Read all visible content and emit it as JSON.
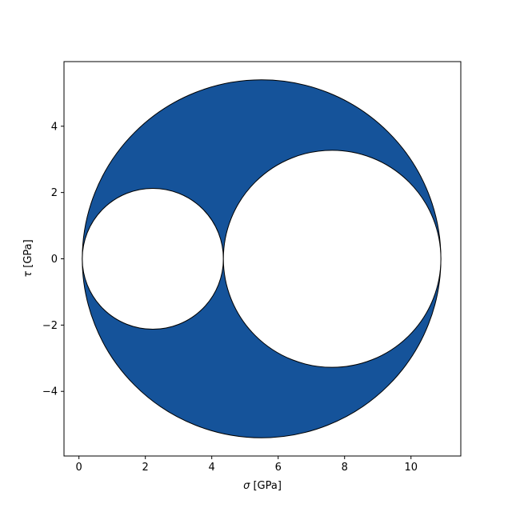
{
  "chart_data": {
    "type": "mohr-circle",
    "title": "",
    "xlabel_symbol": "σ",
    "xlabel_unit": " [GPa]",
    "ylabel_symbol": "τ",
    "ylabel_unit": " [GPa]",
    "xlim": [
      -0.45,
      11.5
    ],
    "ylim": [
      -5.95,
      5.95
    ],
    "xticks": [
      0,
      2,
      4,
      6,
      8,
      10
    ],
    "yticks": [
      -4,
      -2,
      0,
      2,
      4
    ],
    "grid": false,
    "principal_stresses": [
      0.1,
      4.35,
      10.9
    ],
    "circles": [
      {
        "center": 5.5,
        "radius": 5.4,
        "role": "outer"
      },
      {
        "center": 2.225,
        "radius": 2.125,
        "role": "inner"
      },
      {
        "center": 7.625,
        "radius": 3.275,
        "role": "inner"
      }
    ],
    "colors": {
      "fill": "#15539a",
      "hole": "#ffffff",
      "edge": "#000000"
    }
  }
}
